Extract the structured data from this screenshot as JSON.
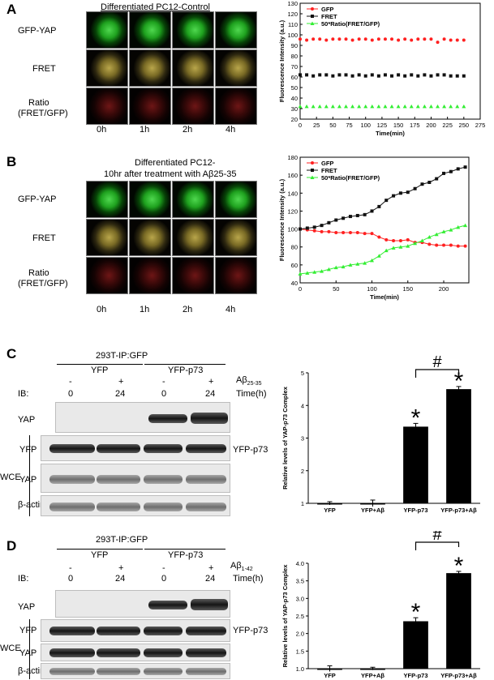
{
  "panels": {
    "A": {
      "letter": "A",
      "title": "Differentiated PC12-Control",
      "rows": [
        "GFP-YAP",
        "FRET",
        "Ratio",
        "(FRET/GFP)"
      ],
      "times": [
        "0h",
        "1h",
        "2h",
        "4h"
      ]
    },
    "B": {
      "letter": "B",
      "title_line1": "Differentiated PC12-",
      "title_line2": "10hr after treatment with Aβ25-35",
      "rows": [
        "GFP-YAP",
        "FRET",
        "Ratio",
        "(FRET/GFP)"
      ],
      "times": [
        "0h",
        "1h",
        "2h",
        "4h"
      ]
    },
    "C": {
      "letter": "C",
      "title": "293T-IP:GFP",
      "group1": "YFP",
      "group2": "YFP-p73",
      "treat": "Aβ",
      "treat_sub": "25-35",
      "time_label": "Time(h)",
      "signs": [
        "-",
        "+",
        "-",
        "+"
      ],
      "ib": "IB:",
      "times": [
        "0",
        "24",
        "0",
        "24"
      ],
      "blots": [
        "YAP",
        "YFP",
        "YAP",
        "β-actin"
      ],
      "right_label": "YFP-p73",
      "wce": "WCE"
    },
    "D": {
      "letter": "D",
      "title": "293T-IP:GFP",
      "group1": "YFP",
      "group2": "YFP-p73",
      "treat": "Aβ",
      "treat_sub": "1-42",
      "time_label": "Time(h)",
      "signs": [
        "-",
        "+",
        "-",
        "+"
      ],
      "ib": "IB:",
      "times": [
        "0",
        "24",
        "0",
        "24"
      ],
      "blots": [
        "YAP",
        "YFP",
        "YAP",
        "β-actin"
      ],
      "right_label": "YFP-p73",
      "wce": "WCE"
    }
  },
  "chart_data": [
    {
      "type": "scatter",
      "id": "A",
      "title": "",
      "xlabel": "Time(min)",
      "ylabel": "Fluorescence Intensity (a.u.)",
      "xlim": [
        0,
        275
      ],
      "ylim": [
        20,
        130
      ],
      "xticks": [
        0,
        25,
        50,
        75,
        100,
        125,
        150,
        175,
        200,
        225,
        250,
        275
      ],
      "yticks": [
        20,
        30,
        40,
        50,
        60,
        70,
        80,
        90,
        100,
        110,
        120,
        130
      ],
      "legend_position": "top-left",
      "series": [
        {
          "name": "GFP",
          "color": "#ff2020",
          "marker": "circle",
          "x": [
            0,
            10,
            20,
            30,
            40,
            50,
            60,
            70,
            80,
            90,
            100,
            110,
            120,
            130,
            140,
            150,
            160,
            170,
            180,
            190,
            200,
            210,
            220,
            230,
            240,
            250
          ],
          "y": [
            96,
            95,
            96,
            96,
            95,
            96,
            96,
            96,
            95,
            96,
            96,
            95,
            96,
            96,
            96,
            95,
            96,
            95,
            96,
            96,
            96,
            93,
            96,
            95,
            95,
            95
          ]
        },
        {
          "name": "FRET",
          "color": "#111111",
          "marker": "square",
          "x": [
            0,
            10,
            20,
            30,
            40,
            50,
            60,
            70,
            80,
            90,
            100,
            110,
            120,
            130,
            140,
            150,
            160,
            170,
            180,
            190,
            200,
            210,
            220,
            230,
            240,
            250
          ],
          "y": [
            62,
            62,
            61,
            62,
            62,
            61,
            62,
            62,
            61,
            62,
            61,
            62,
            61,
            62,
            61,
            62,
            61,
            62,
            61,
            62,
            61,
            62,
            62,
            61,
            61,
            61
          ]
        },
        {
          "name": "50*Ratio(FRET/GFP)",
          "color": "#33ee33",
          "marker": "triangle",
          "x": [
            0,
            10,
            20,
            30,
            40,
            50,
            60,
            70,
            80,
            90,
            100,
            110,
            120,
            130,
            140,
            150,
            160,
            170,
            180,
            190,
            200,
            210,
            220,
            230,
            240,
            250
          ],
          "y": [
            32,
            32,
            32,
            32,
            32,
            32,
            32,
            32,
            32,
            32,
            32,
            32,
            32,
            32,
            32,
            32,
            32,
            32,
            32,
            32,
            32,
            32,
            32,
            32,
            32,
            32
          ]
        }
      ]
    },
    {
      "type": "line",
      "id": "B",
      "title": "",
      "xlabel": "Time(min)",
      "ylabel": "Fluorescence Intensity (a.u.)",
      "xlim": [
        0,
        235
      ],
      "ylim": [
        40,
        180
      ],
      "xticks": [
        0,
        50,
        100,
        150,
        200
      ],
      "yticks": [
        40,
        60,
        80,
        100,
        120,
        140,
        160,
        180
      ],
      "legend_position": "top-left",
      "series": [
        {
          "name": "GFP",
          "color": "#ff2020",
          "marker": "circle",
          "x": [
            0,
            10,
            20,
            30,
            40,
            50,
            60,
            70,
            80,
            90,
            100,
            110,
            120,
            130,
            140,
            150,
            160,
            170,
            180,
            190,
            200,
            210,
            220,
            230
          ],
          "y": [
            100,
            99,
            98,
            97,
            97,
            96,
            96,
            96,
            96,
            95,
            95,
            91,
            88,
            87,
            87,
            88,
            85,
            85,
            83,
            82,
            82,
            82,
            81,
            81
          ]
        },
        {
          "name": "FRET",
          "color": "#111111",
          "marker": "square",
          "x": [
            0,
            10,
            20,
            30,
            40,
            50,
            60,
            70,
            80,
            90,
            100,
            110,
            120,
            130,
            140,
            150,
            160,
            170,
            180,
            190,
            200,
            210,
            220,
            230
          ],
          "y": [
            100,
            101,
            102,
            104,
            107,
            110,
            112,
            114,
            115,
            116,
            120,
            125,
            132,
            137,
            140,
            141,
            145,
            150,
            152,
            156,
            162,
            164,
            167,
            169
          ]
        },
        {
          "name": "50*Ratio(FRET/GFP)",
          "color": "#33ee33",
          "marker": "triangle",
          "x": [
            0,
            10,
            20,
            30,
            40,
            50,
            60,
            70,
            80,
            90,
            100,
            110,
            120,
            130,
            140,
            150,
            160,
            170,
            180,
            190,
            200,
            210,
            220,
            230
          ],
          "y": [
            50,
            51,
            52,
            53,
            55,
            57,
            58,
            60,
            61,
            62,
            65,
            70,
            76,
            79,
            80,
            81,
            84,
            87,
            91,
            94,
            97,
            99,
            102,
            104
          ]
        }
      ]
    },
    {
      "type": "bar",
      "id": "C",
      "ylabel": "Relative levels of YAP-p73 Complex",
      "categories": [
        "YFP",
        "YFP+Aβ",
        "YFP-p73",
        "YFP-p73+Aβ"
      ],
      "values": [
        1.0,
        1.0,
        3.35,
        4.5
      ],
      "errors": [
        0.05,
        0.1,
        0.1,
        0.08
      ],
      "ylim": [
        1,
        5
      ],
      "yticks": [
        1,
        2,
        3,
        4,
        5
      ],
      "significance": [
        "",
        "",
        "*",
        "*"
      ],
      "bracket": {
        "from": 2,
        "to": 3,
        "label": "#"
      }
    },
    {
      "type": "bar",
      "id": "D",
      "ylabel": "Relative levels of YAP-p73 Complex",
      "categories": [
        "YFP",
        "YFP+Aβ",
        "YFP-p73",
        "YFP-p73+Aβ"
      ],
      "values": [
        1.0,
        1.0,
        2.35,
        3.72
      ],
      "errors": [
        0.08,
        0.04,
        0.1,
        0.05
      ],
      "ylim": [
        1,
        4
      ],
      "yticks": [
        1.0,
        1.5,
        2.0,
        2.5,
        3.0,
        3.5,
        4.0
      ],
      "significance": [
        "",
        "",
        "*",
        "*"
      ],
      "bracket": {
        "from": 2,
        "to": 3,
        "label": "#"
      }
    }
  ]
}
